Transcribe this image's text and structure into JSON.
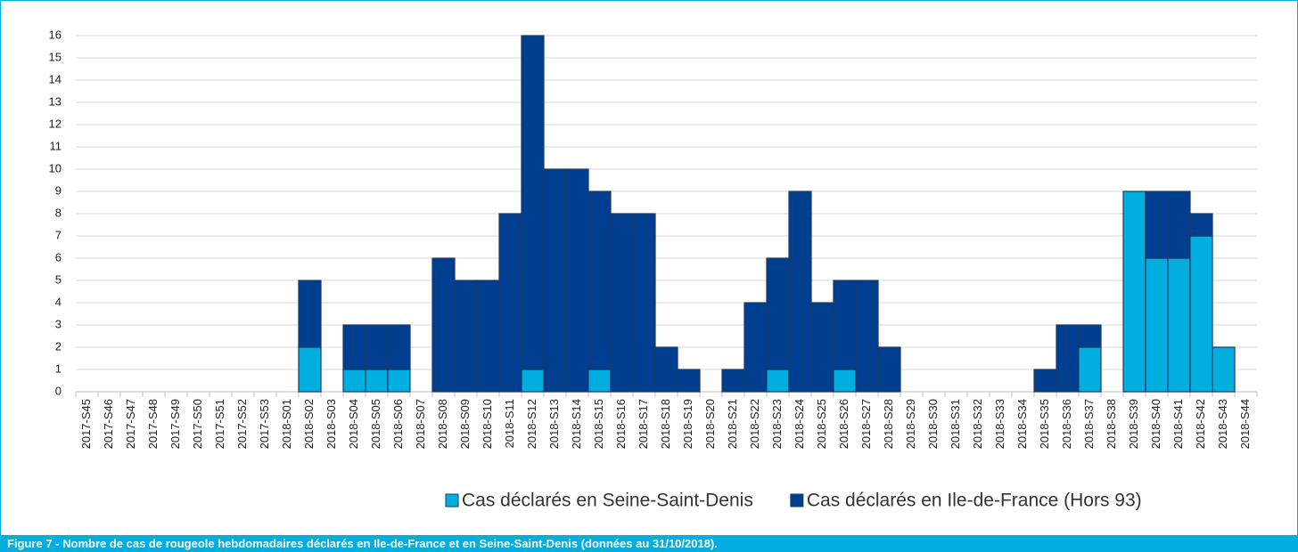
{
  "chart_data": {
    "type": "stacked-bar",
    "caption": "Figure 7 -  Nombre de cas de rougeole hebdomadaires déclarés en Ile-de-France et en Seine-Saint-Denis (données au 31/10/2018).",
    "categories": [
      "2017-S45",
      "2017-S46",
      "2017-S47",
      "2017-S48",
      "2017-S49",
      "2017-S50",
      "2017-S51",
      "2017-S52",
      "2017-S53",
      "2018-S01",
      "2018-S02",
      "2018-S03",
      "2018-S04",
      "2018-S05",
      "2018-S06",
      "2018-S07",
      "2018-S08",
      "2018-S09",
      "2018-S10",
      "2018-S11",
      "2018-S12",
      "2018-S13",
      "2018-S14",
      "2018-S15",
      "2018-S16",
      "2018-S17",
      "2018-S18",
      "2018-S19",
      "2018-S20",
      "2018-S21",
      "2018-S22",
      "2018-S23",
      "2018-S24",
      "2018-S25",
      "2018-S26",
      "2018-S27",
      "2018-S28",
      "2018-S29",
      "2018-S30",
      "2018-S31",
      "2018-S32",
      "2018-S33",
      "2018-S34",
      "2018-S35",
      "2018-S36",
      "2018-S37",
      "2018-S38",
      "2018-S39",
      "2018-S40",
      "2018-S41",
      "2018-S42",
      "2018-S43",
      "2018-S44"
    ],
    "series": [
      {
        "name": "Cas déclarés en Seine-Saint-Denis",
        "color": "#00aee0",
        "values": [
          0,
          0,
          0,
          0,
          0,
          0,
          0,
          0,
          0,
          0,
          2,
          0,
          1,
          1,
          1,
          0,
          0,
          0,
          0,
          0,
          1,
          0,
          0,
          1,
          0,
          0,
          0,
          0,
          0,
          0,
          0,
          1,
          0,
          0,
          1,
          0,
          0,
          0,
          0,
          0,
          0,
          0,
          0,
          0,
          0,
          2,
          0,
          9,
          6,
          6,
          7,
          2,
          0
        ]
      },
      {
        "name": "Cas déclarés en Ile-de-France (Hors 93)",
        "color": "#003f8f",
        "values": [
          0,
          0,
          0,
          0,
          0,
          0,
          0,
          0,
          0,
          0,
          3,
          0,
          2,
          2,
          2,
          0,
          6,
          5,
          5,
          8,
          15,
          10,
          10,
          8,
          8,
          8,
          2,
          1,
          0,
          1,
          4,
          5,
          9,
          4,
          4,
          5,
          2,
          0,
          0,
          0,
          0,
          0,
          0,
          1,
          3,
          1,
          0,
          0,
          3,
          3,
          1,
          0,
          0
        ]
      }
    ],
    "ylim": [
      0,
      16
    ],
    "yticks": [
      0,
      1,
      2,
      3,
      4,
      5,
      6,
      7,
      8,
      9,
      10,
      11,
      12,
      13,
      14,
      15,
      16
    ],
    "grid": true
  }
}
